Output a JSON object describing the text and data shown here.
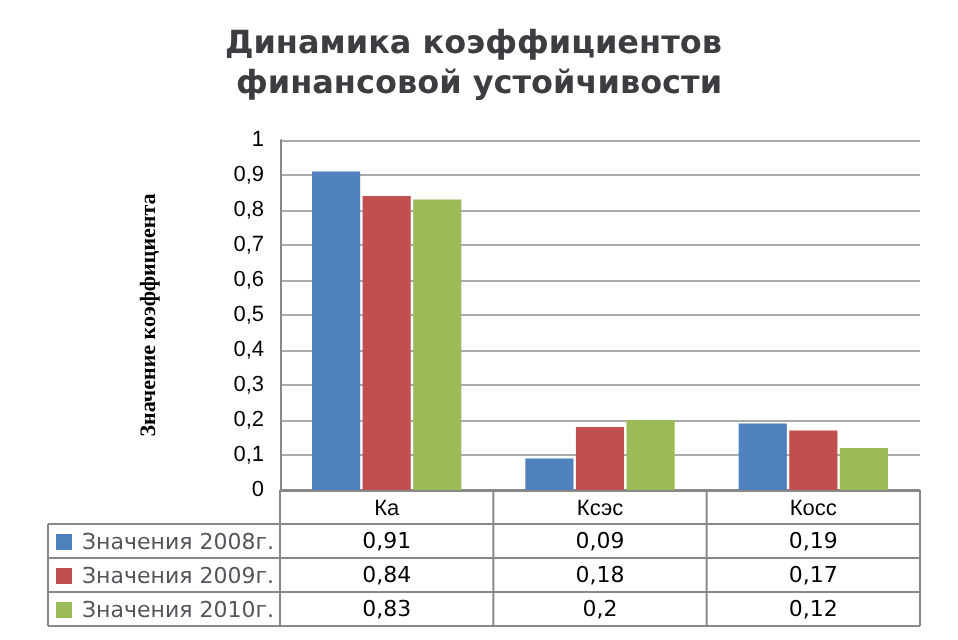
{
  "chart_data": {
    "type": "bar",
    "title": "Динамика коэффициентов финансовой устойчивости",
    "ylabel": "Значение коэффициента",
    "categories": [
      "Ка",
      "Ксэс",
      "Косс"
    ],
    "series": [
      {
        "name": "Значения 2008г.",
        "color": "#4f81bd",
        "values": [
          0.91,
          0.09,
          0.19
        ],
        "value_labels": [
          "0,91",
          "0,09",
          "0,19"
        ]
      },
      {
        "name": "Значения 2009г.",
        "color": "#c0504d",
        "values": [
          0.84,
          0.18,
          0.17
        ],
        "value_labels": [
          "0,84",
          "0,18",
          "0,17"
        ]
      },
      {
        "name": "Значения 2010г.",
        "color": "#9bbb59",
        "values": [
          0.83,
          0.2,
          0.12
        ],
        "value_labels": [
          "0,83",
          "0,2",
          "0,12"
        ]
      }
    ],
    "ylim": [
      0,
      1
    ],
    "yticks": [
      0,
      {
        "value": 0.1,
        "label": "0,1"
      },
      {
        "value": 0.2,
        "label": "0,2"
      },
      {
        "value": 0.3,
        "label": "0,3"
      },
      {
        "value": 0.4,
        "label": "0,4"
      },
      {
        "value": 0.5,
        "label": "0,5"
      },
      {
        "value": 0.6,
        "label": "0,6"
      },
      {
        "value": 0.7,
        "label": "0,7"
      },
      {
        "value": 0.8,
        "label": "0,8"
      },
      {
        "value": 0.9,
        "label": "0,9"
      },
      1
    ],
    "grid": "y",
    "legend": "bottom left"
  }
}
